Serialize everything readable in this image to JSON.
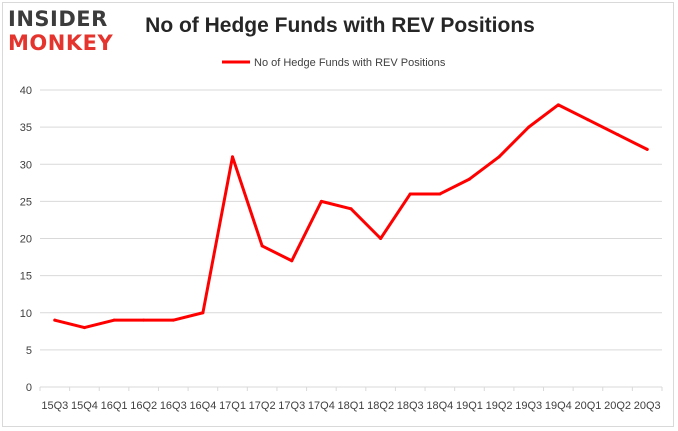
{
  "logo": {
    "line1": "INSIDER",
    "line2": "MONKEY"
  },
  "chart_data": {
    "type": "line",
    "title": "No of Hedge Funds with REV Positions",
    "xlabel": "",
    "ylabel": "",
    "categories": [
      "15Q3",
      "15Q4",
      "16Q1",
      "16Q2",
      "16Q3",
      "16Q4",
      "17Q1",
      "17Q2",
      "17Q3",
      "17Q4",
      "18Q1",
      "18Q2",
      "18Q3",
      "18Q4",
      "19Q1",
      "19Q2",
      "19Q3",
      "19Q4",
      "20Q1",
      "20Q2",
      "20Q3"
    ],
    "series": [
      {
        "name": "No of Hedge Funds with REV Positions",
        "values": [
          9,
          8,
          9,
          9,
          9,
          10,
          31,
          19,
          17,
          25,
          24,
          20,
          26,
          26,
          28,
          31,
          35,
          38,
          36,
          34,
          32
        ]
      }
    ],
    "ylim": [
      0,
      40
    ],
    "yticks": [
      0,
      5,
      10,
      15,
      20,
      25,
      30,
      35,
      40
    ],
    "grid": true,
    "legend": "top-center",
    "line_color": "#ff0000",
    "grid_color": "#d9d9d9"
  }
}
